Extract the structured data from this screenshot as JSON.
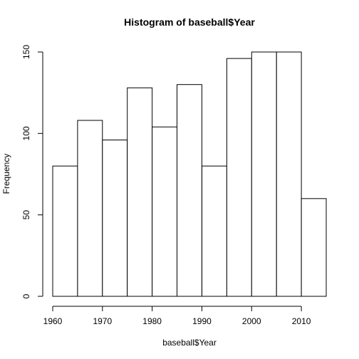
{
  "chart_data": {
    "type": "bar",
    "title": "Histogram of baseball$Year",
    "xlabel": "baseball$Year",
    "ylabel": "Frequency",
    "bins": [
      {
        "start": 1960,
        "end": 1965,
        "count": 80
      },
      {
        "start": 1965,
        "end": 1970,
        "count": 108
      },
      {
        "start": 1970,
        "end": 1975,
        "count": 96
      },
      {
        "start": 1975,
        "end": 1980,
        "count": 128
      },
      {
        "start": 1980,
        "end": 1985,
        "count": 104
      },
      {
        "start": 1985,
        "end": 1990,
        "count": 130
      },
      {
        "start": 1990,
        "end": 1995,
        "count": 80
      },
      {
        "start": 1995,
        "end": 2000,
        "count": 146
      },
      {
        "start": 2000,
        "end": 2005,
        "count": 150
      },
      {
        "start": 2005,
        "end": 2010,
        "count": 150
      },
      {
        "start": 2010,
        "end": 2015,
        "count": 60
      }
    ],
    "xlim": [
      1960,
      2015
    ],
    "ylim": [
      0,
      150
    ],
    "x_ticks": [
      "1960",
      "1970",
      "1980",
      "1990",
      "2000",
      "2010"
    ],
    "y_ticks": [
      "0",
      "50",
      "100",
      "150"
    ],
    "grid": false,
    "legend": "none",
    "bar_fill": "#ffffff",
    "bar_stroke": "#000000"
  }
}
